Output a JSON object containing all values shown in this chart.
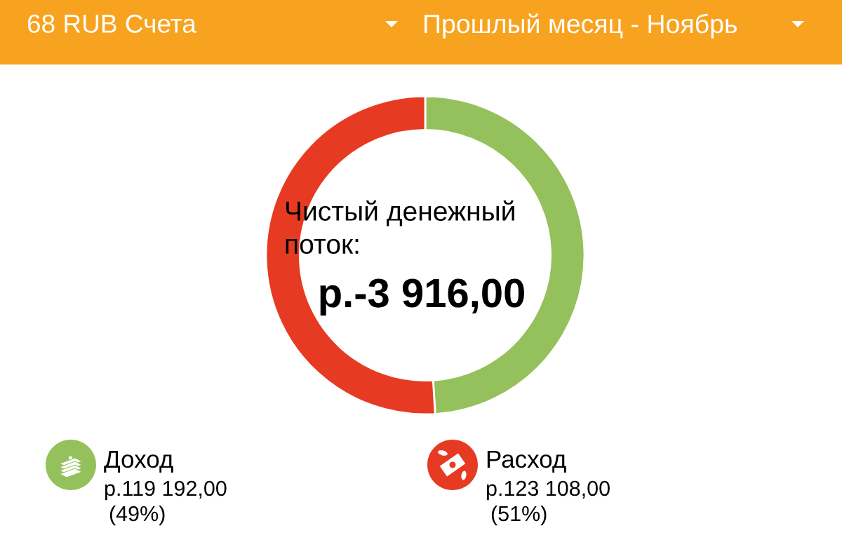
{
  "chart_data": {
    "type": "donut",
    "title": "68 RUB Счета",
    "subtitle": "Прошлый месяц - Ноябрь",
    "categories": [
      "Доход",
      "Расход"
    ],
    "values": [
      49,
      51
    ],
    "colors": [
      "#95c15c",
      "#e63b22"
    ],
    "annotations": [
      "Чистый денежный\nпоток:",
      "р.-3 916,00",
      "р.119 192,00",
      "р.123 108,00",
      "(49%)",
      "(51%)"
    ],
    "legend": "bottom"
  }
}
